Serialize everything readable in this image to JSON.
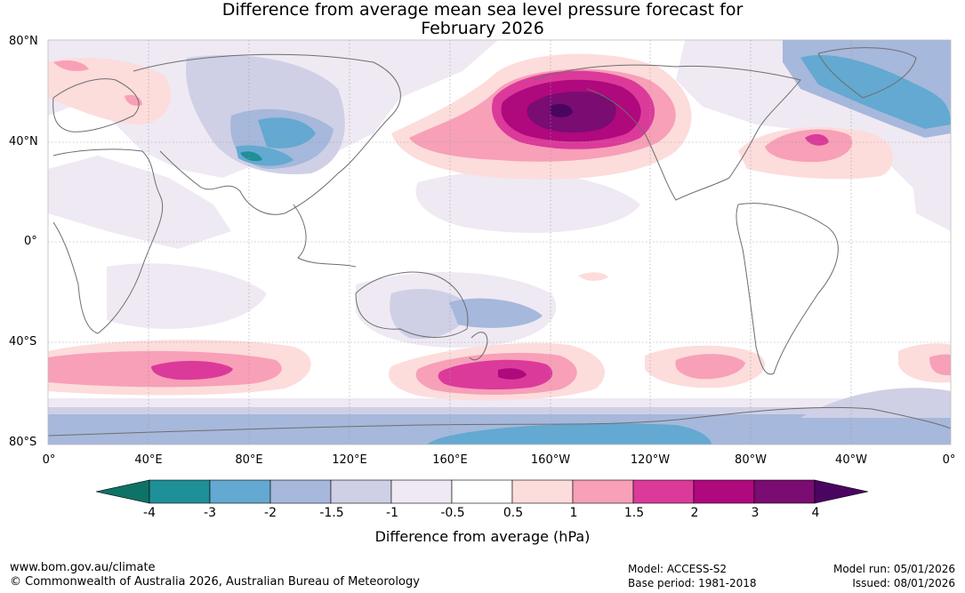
{
  "title": {
    "line1": "Difference from average mean sea level pressure forecast for",
    "line2": "February 2026"
  },
  "map": {
    "lat_labels": [
      "80°N",
      "40°N",
      "0°",
      "40°S",
      "80°S"
    ],
    "lon_labels": [
      "0°",
      "40°E",
      "80°E",
      "120°E",
      "160°E",
      "160°W",
      "120°W",
      "80°W",
      "40°W",
      "0°"
    ],
    "anomalies_hpa": [
      {
        "region": "North Pacific / Gulf of Alaska",
        "value": 4
      },
      {
        "region": "Southwest Pacific south of New Zealand",
        "value": 3
      },
      {
        "region": "Southern Indian Ocean",
        "value": 2
      },
      {
        "region": "North Atlantic",
        "value": 1.5
      },
      {
        "region": "Central Asia",
        "value": -3
      },
      {
        "region": "Greenland / Arctic Canada",
        "value": -2
      },
      {
        "region": "Antarctic margin",
        "value": -2
      },
      {
        "region": "Australia",
        "value": -1.5
      }
    ]
  },
  "colorbar": {
    "title": "Difference from average (hPa)",
    "ticks": [
      "-4",
      "-3",
      "-2",
      "-1.5",
      "-1",
      "-0.5",
      "0.5",
      "1",
      "1.5",
      "2",
      "3",
      "4"
    ],
    "colors": [
      "#0f7266",
      "#1f8f98",
      "#63a9d1",
      "#a6b8db",
      "#cfd0e6",
      "#efe9f3",
      "#ffffff",
      "#fddcdc",
      "#f7a0b8",
      "#db3a9a",
      "#b0087d",
      "#7a0c72",
      "#4a0561"
    ]
  },
  "footer": {
    "website": "www.bom.gov.au/climate",
    "copyright": "© Commonwealth of Australia 2026, Australian Bureau of Meteorology",
    "model": "Model: ACCESS-S2",
    "base_period": "Base period: 1981-2018",
    "model_run": "Model run: 05/01/2026",
    "issued": "Issued: 08/01/2026"
  }
}
